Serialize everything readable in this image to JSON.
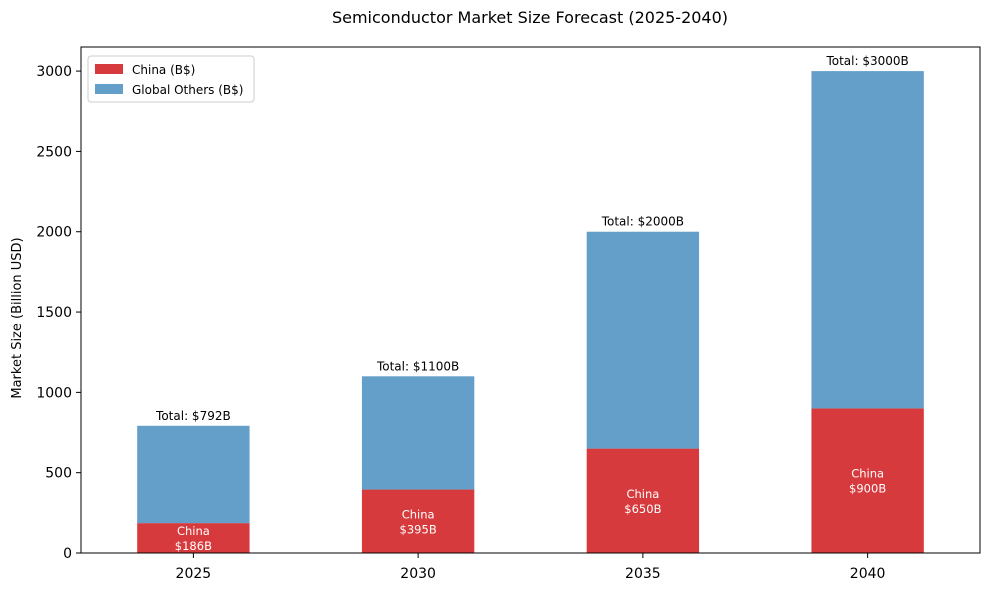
{
  "chart_data": {
    "type": "bar",
    "stacked": true,
    "title": "Semiconductor Market Size Forecast (2025-2040)",
    "xlabel": "",
    "ylabel": "Market Size (Billion USD)",
    "categories": [
      "2025",
      "2030",
      "2035",
      "2040"
    ],
    "series": [
      {
        "name": "China (B$)",
        "color": "#d73a3c",
        "values": [
          186,
          395,
          650,
          900
        ]
      },
      {
        "name": "Global Others (B$)",
        "color": "#649fca",
        "values": [
          606,
          705,
          1350,
          2100
        ]
      }
    ],
    "ylim": [
      0,
      3150
    ],
    "yticks": [
      0,
      500,
      1000,
      1500,
      2000,
      2500,
      3000
    ],
    "total_labels": [
      "Total: $792B",
      "Total: $1100B",
      "Total: $2000B",
      "Total: $3000B"
    ],
    "china_labels": [
      [
        "China",
        "$186B"
      ],
      [
        "China",
        "$395B"
      ],
      [
        "China",
        "$650B"
      ],
      [
        "China",
        "$900B"
      ]
    ],
    "legend_position": "upper-left",
    "grid": false
  }
}
